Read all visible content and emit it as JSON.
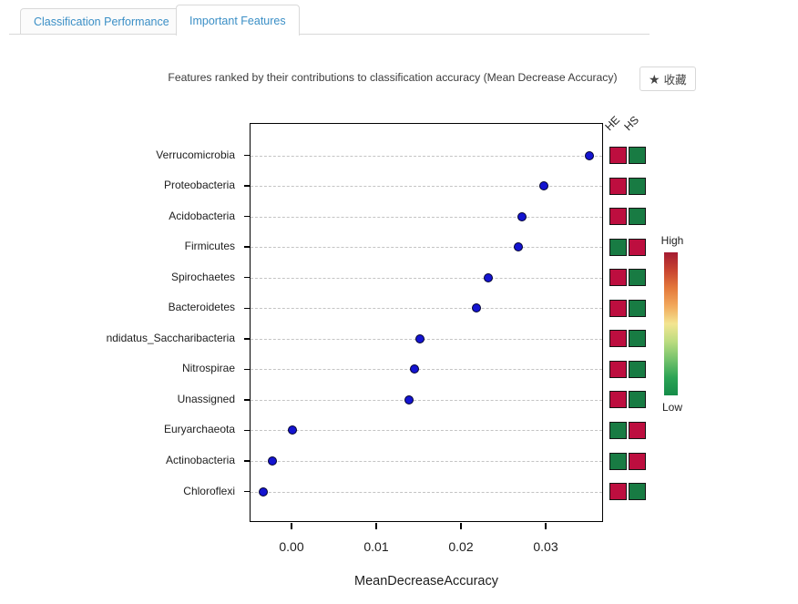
{
  "tabs": {
    "items": [
      {
        "label": "Classification Performance",
        "active": false
      },
      {
        "label": "Important Features",
        "active": true
      }
    ],
    "text_color": "#3b8fc6"
  },
  "header": {
    "title": "Features ranked by their contributions to classification accuracy (Mean Decrease Accuracy)",
    "favorite_button": {
      "label": "收藏",
      "star_color": "#f5a623"
    }
  },
  "chart_data": {
    "type": "scatter",
    "subtype": "horizontal-dotplot",
    "xlabel": "MeanDecreaseAccuracy",
    "xlim": [
      -0.0049,
      0.0368
    ],
    "xticks": [
      0,
      0.01,
      0.02,
      0.03
    ],
    "xtick_labels": [
      "0.00",
      "0.01",
      "0.02",
      "0.03"
    ],
    "grid": "horizontal-dashed",
    "point_color": "#1414d0",
    "categories": [
      "Verrucomicrobia",
      "Proteobacteria",
      "Acidobacteria",
      "Firmicutes",
      "Spirochaetes",
      "Bacteroidetes",
      "ndidatus_Saccharibacteria",
      "Nitrospirae",
      "Unassigned",
      "Euryarchaeota",
      "Actinobacteria",
      "Chloroflexi"
    ],
    "values": [
      0.035,
      0.0297,
      0.0271,
      0.0267,
      0.0231,
      0.0217,
      0.0151,
      0.0144,
      0.0138,
      0.0,
      -0.0024,
      -0.0034
    ],
    "heatmap": {
      "columns": [
        "HE",
        "HS"
      ],
      "cells": [
        [
          "high",
          "low"
        ],
        [
          "high",
          "low"
        ],
        [
          "high",
          "low"
        ],
        [
          "low",
          "high"
        ],
        [
          "high",
          "low"
        ],
        [
          "high",
          "low"
        ],
        [
          "high",
          "low"
        ],
        [
          "high",
          "low"
        ],
        [
          "high",
          "low"
        ],
        [
          "low",
          "high"
        ],
        [
          "low",
          "high"
        ],
        [
          "high",
          "low"
        ]
      ],
      "colors": {
        "high": "#bd0e3f",
        "low": "#187b43"
      }
    },
    "colorbar": {
      "high_label": "High",
      "low_label": "Low",
      "gradient": [
        "#a41b31",
        "#c84430",
        "#e4793b",
        "#f2a95c",
        "#f3e591",
        "#bbdc80",
        "#74c26c",
        "#2ca455",
        "#158c49"
      ]
    }
  }
}
